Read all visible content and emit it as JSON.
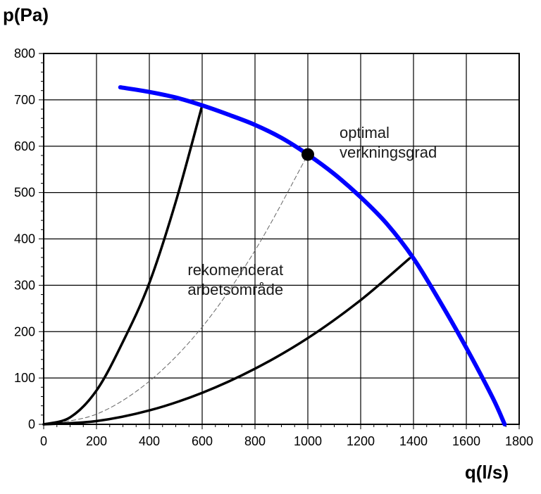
{
  "chart_data": {
    "type": "line",
    "ylabel": "p(Pa)",
    "xlabel": "q(l/s)",
    "xlim": [
      0,
      1800
    ],
    "ylim": [
      0,
      800
    ],
    "x_ticks": [
      0,
      200,
      400,
      600,
      800,
      1000,
      1200,
      1400,
      1600,
      1800
    ],
    "y_ticks": [
      0,
      100,
      200,
      300,
      400,
      500,
      600,
      700,
      800
    ],
    "grid": true,
    "series": [
      {
        "color": "#0000ff",
        "style": "solid",
        "x": [
          290,
          400,
          500,
          600,
          700,
          800,
          900,
          1000,
          1100,
          1200,
          1300,
          1400,
          1500,
          1600,
          1700,
          1745
        ],
        "y": [
          727,
          717,
          705,
          688,
          668,
          646,
          618,
          582,
          540,
          490,
          432,
          358,
          265,
          165,
          57,
          0
        ]
      },
      {
        "color": "#000000",
        "style": "solid",
        "x": [
          0,
          100,
          200,
          300,
          400,
          500,
          600
        ],
        "y": [
          0,
          15,
          73,
          178,
          305,
          480,
          688
        ]
      },
      {
        "color": "#000000",
        "style": "solid",
        "x": [
          0,
          200,
          400,
          600,
          800,
          1000,
          1200,
          1385
        ],
        "y": [
          0,
          7,
          30,
          68,
          120,
          186,
          268,
          358
        ]
      },
      {
        "color": "#666666",
        "style": "dashed",
        "x": [
          0,
          200,
          400,
          600,
          800,
          1000
        ],
        "y": [
          0,
          22,
          93,
          210,
          375,
          582
        ]
      }
    ],
    "marker": {
      "x": 1000,
      "y": 582
    },
    "annotations": [
      {
        "lines": [
          "optimal",
          "verkningsgrad"
        ],
        "x": 1120,
        "y": 618
      },
      {
        "lines": [
          "rekomenderat",
          "arbetsområde"
        ],
        "x": 545,
        "y": 322
      }
    ]
  }
}
